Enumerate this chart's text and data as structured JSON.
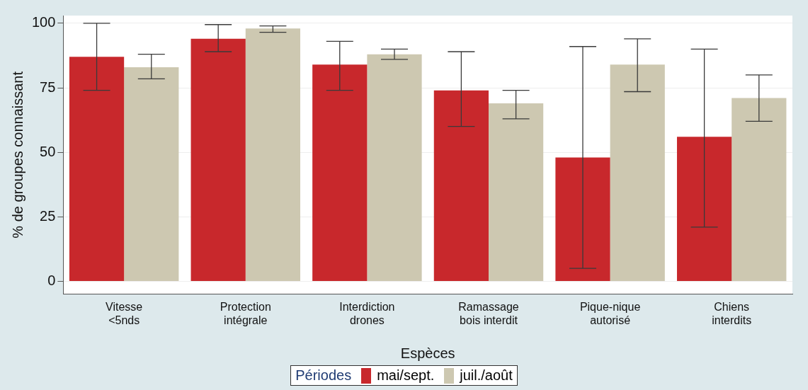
{
  "chart_data": {
    "type": "bar",
    "xlabel": "Espèces",
    "ylabel": "% de groupes connaissant",
    "legend_title": "Périodes",
    "legend": "bottom",
    "grid": "y",
    "categories": [
      "Vitesse <5nds",
      "Protection intégrale",
      "Interdiction drones",
      "Ramassage bois interdit",
      "Pique-nique autorisé",
      "Chiens interdits"
    ],
    "ylim": [
      -5,
      103
    ],
    "yticks": [
      0,
      25,
      50,
      75,
      100
    ],
    "series": [
      {
        "name": "mai/sept.",
        "color": "#c8282c",
        "values": [
          87,
          94,
          84,
          74,
          48,
          56
        ],
        "errors": [
          [
            74,
            100
          ],
          [
            89,
            99.5
          ],
          [
            74,
            93
          ],
          [
            60,
            89
          ],
          [
            5,
            91
          ],
          [
            21,
            90
          ]
        ]
      },
      {
        "name": "juil./août",
        "color": "#cdc8b1",
        "values": [
          83,
          98,
          88,
          69,
          84,
          71
        ],
        "errors": [
          [
            78.5,
            88
          ],
          [
            96.5,
            99
          ],
          [
            86,
            90
          ],
          [
            63,
            74
          ],
          [
            73.5,
            94
          ],
          [
            62,
            80
          ]
        ]
      }
    ]
  }
}
